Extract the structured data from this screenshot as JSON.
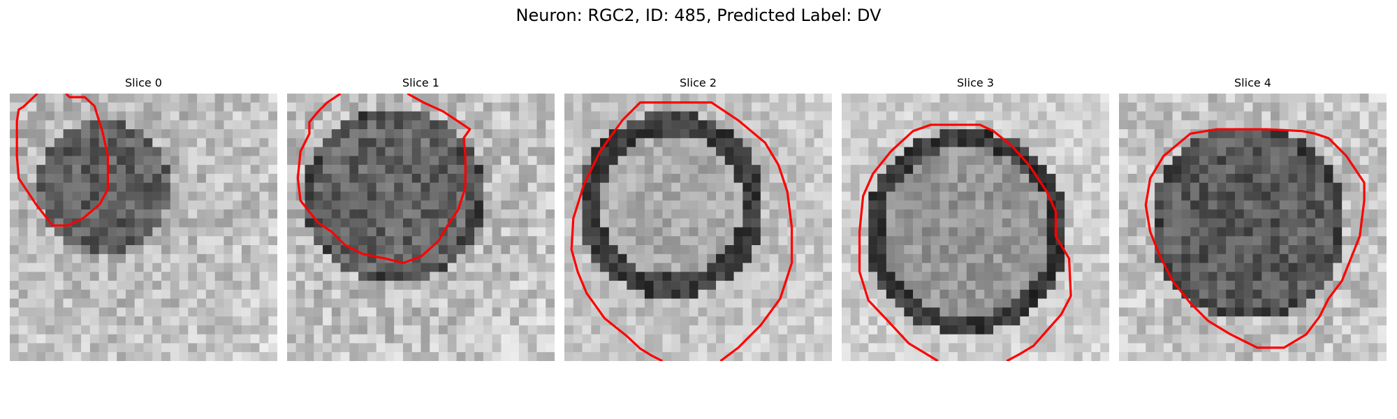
{
  "title": "Neuron: RGC2, ID: 485, Predicted Label: DV",
  "contour_color": "#ff0000",
  "panels": [
    {
      "title": "Slice 0",
      "cell": "darker gray blob with noisy border, contour only upper-left region"
    },
    {
      "title": "Slice 1",
      "cell": "textured cell body inside irregular contour"
    },
    {
      "title": "Slice 2",
      "cell": "large bright-centered soma with dark rim"
    },
    {
      "title": "Slice 3",
      "cell": "large soma with dark upper-right rim"
    },
    {
      "title": "Slice 4",
      "cell": "dark textured soma inside octagonal contour"
    }
  ]
}
